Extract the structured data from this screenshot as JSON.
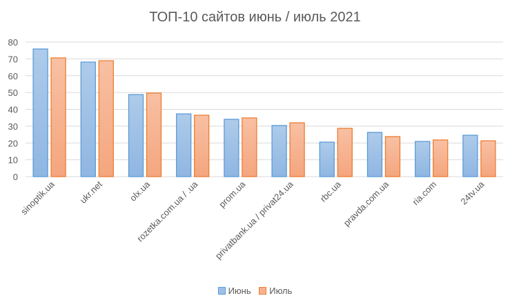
{
  "chart_data": {
    "type": "bar",
    "title": "ТОП-10 сайтов июнь / июль 2021",
    "categories": [
      "sinoptik.ua",
      "ukr.net",
      "olx.ua",
      "rozetka.com.ua / .ua",
      "prom.ua",
      "privatbank.ua / privat24.ua",
      "rbc.ua",
      "pravda.com.ua",
      "ria.com",
      "24tv.ua"
    ],
    "series": [
      {
        "name": "Июнь",
        "color": "#5B9BD5",
        "values": [
          75.9,
          68.1,
          48.8,
          37.3,
          34.1,
          30.4,
          20.5,
          26.3,
          20.9,
          24.6
        ]
      },
      {
        "name": "Июль",
        "color": "#ED7D31",
        "values": [
          70.6,
          68.9,
          49.7,
          36.5,
          34.9,
          32.0,
          28.7,
          23.8,
          21.8,
          21.3
        ]
      }
    ],
    "ylim": [
      0,
      80
    ],
    "yticks": [
      "0",
      "10",
      "20",
      "30",
      "40",
      "50",
      "60",
      "70",
      "80"
    ],
    "grid": true,
    "legend_position": "bottom"
  }
}
